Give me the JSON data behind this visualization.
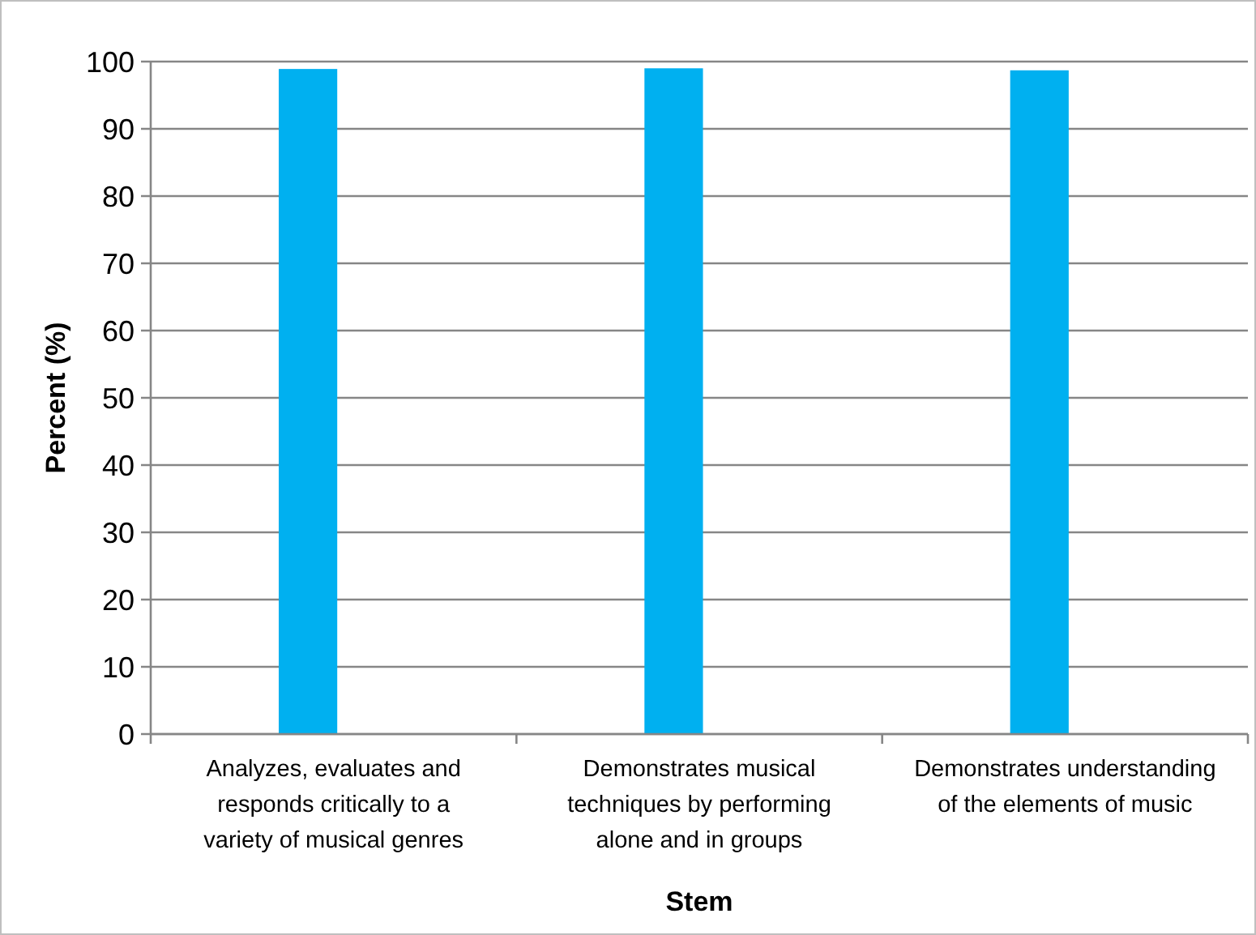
{
  "chart_data": {
    "type": "bar",
    "xlabel": "Stem",
    "ylabel": "Percent (%)",
    "categories": [
      "Analyzes, evaluates and responds critically to a variety of musical genres",
      "Demonstrates musical techniques by performing alone and in groups",
      "Demonstrates understanding of the elements of music"
    ],
    "values": [
      98.9,
      99.0,
      98.7
    ],
    "color": "#00b0f0",
    "ylim": [
      0,
      100
    ],
    "yticks": [
      0,
      10,
      20,
      30,
      40,
      50,
      60,
      70,
      80,
      90,
      100
    ],
    "grid": "y"
  }
}
